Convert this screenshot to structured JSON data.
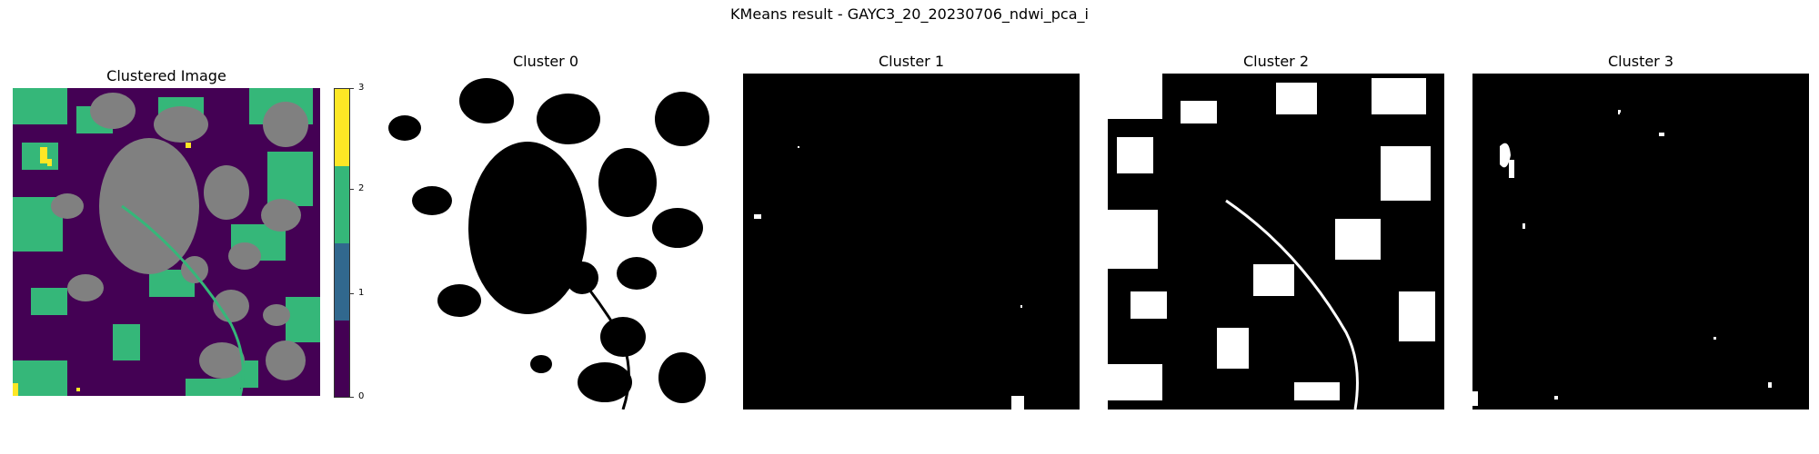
{
  "figure": {
    "suptitle": "KMeans result - GAYC3_20_20230706_ndwi_pca_i"
  },
  "panels": [
    {
      "title": "Clustered Image"
    },
    {
      "title": "Cluster 0"
    },
    {
      "title": "Cluster 1"
    },
    {
      "title": "Cluster 2"
    },
    {
      "title": "Cluster 3"
    }
  ],
  "colorbar": {
    "ticks": [
      "0",
      "1",
      "2",
      "3"
    ],
    "colors": {
      "cluster0": "#440154",
      "cluster1": "#31688e",
      "cluster2": "#35b779",
      "cluster3": "#fde725",
      "masked": "#808080"
    }
  }
}
